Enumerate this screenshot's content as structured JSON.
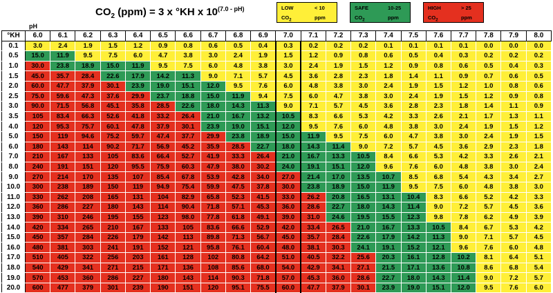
{
  "header": {
    "formula_prefix": "CO",
    "formula_sub": "2",
    "formula_mid": " (ppm) = 3 x °KH x 10",
    "formula_exp": "(7.0 - pH)",
    "legend": [
      {
        "key": "low",
        "label": "LOW",
        "label2": "CO",
        "sub": "2",
        "range": "< 10",
        "unit": "ppm",
        "color": "#ffef38"
      },
      {
        "key": "safe",
        "label": "SAFE",
        "label2": "CO",
        "sub": "2",
        "range": "10-25",
        "unit": "ppm",
        "color": "#2e9a56"
      },
      {
        "key": "high",
        "label": "HIGH",
        "label2": "CO",
        "sub": "2",
        "range": "> 25",
        "unit": "ppm",
        "color": "#e4301f"
      }
    ]
  },
  "chart_data": {
    "type": "table",
    "x_axis_label": "pH",
    "y_axis_label": "°KH",
    "ph_values": [
      "6.0",
      "6.1",
      "6.2",
      "6.3",
      "6.4",
      "6.5",
      "6.6",
      "6.7",
      "6.8",
      "6.9",
      "7.0",
      "7.1",
      "7.2",
      "7.3",
      "7.4",
      "7.5",
      "7.6",
      "7.7",
      "7.8",
      "7.9",
      "8.0"
    ],
    "kh_values": [
      "0.1",
      "0.5",
      "1.0",
      "1.5",
      "2.0",
      "2.5",
      "3.0",
      "3.5",
      "4.0",
      "5.0",
      "6.0",
      "7.0",
      "8.0",
      "9.0",
      "10.0",
      "11.0",
      "12.0",
      "13.0",
      "14.0",
      "15.0",
      "16.0",
      "17.0",
      "18.0",
      "19.0",
      "20.0"
    ],
    "rows": [
      [
        "3.0",
        "2.4",
        "1.9",
        "1.5",
        "1.2",
        "0.9",
        "0.8",
        "0.6",
        "0.5",
        "0.4",
        "0.3",
        "0.2",
        "0.2",
        "0.2",
        "0.1",
        "0.1",
        "0.1",
        "0.1",
        "0.0",
        "0.0",
        "0.0"
      ],
      [
        "15.0",
        "11.9",
        "9.5",
        "7.5",
        "6.0",
        "4.7",
        "3.8",
        "3.0",
        "2.4",
        "1.9",
        "1.5",
        "1.2",
        "0.9",
        "0.8",
        "0.6",
        "0.5",
        "0.4",
        "0.3",
        "0.2",
        "0.2",
        "0.2"
      ],
      [
        "30.0",
        "23.8",
        "18.9",
        "15.0",
        "11.9",
        "9.5",
        "7.5",
        "6.0",
        "4.8",
        "3.8",
        "3.0",
        "2.4",
        "1.9",
        "1.5",
        "1.2",
        "0.9",
        "0.8",
        "0.6",
        "0.5",
        "0.4",
        "0.3"
      ],
      [
        "45.0",
        "35.7",
        "28.4",
        "22.6",
        "17.9",
        "14.2",
        "11.3",
        "9.0",
        "7.1",
        "5.7",
        "4.5",
        "3.6",
        "2.8",
        "2.3",
        "1.8",
        "1.4",
        "1.1",
        "0.9",
        "0.7",
        "0.6",
        "0.5"
      ],
      [
        "60.0",
        "47.7",
        "37.9",
        "30.1",
        "23.9",
        "19.0",
        "15.1",
        "12.0",
        "9.5",
        "7.6",
        "6.0",
        "4.8",
        "3.8",
        "3.0",
        "2.4",
        "1.9",
        "1.5",
        "1.2",
        "1.0",
        "0.8",
        "0.6"
      ],
      [
        "75.0",
        "59.6",
        "47.3",
        "37.6",
        "29.9",
        "23.7",
        "18.8",
        "15.0",
        "11.9",
        "9.4",
        "7.5",
        "6.0",
        "4.7",
        "3.8",
        "3.0",
        "2.4",
        "1.9",
        "1.5",
        "1.2",
        "0.9",
        "0.8"
      ],
      [
        "90.0",
        "71.5",
        "56.8",
        "45.1",
        "35.8",
        "28.5",
        "22.6",
        "18.0",
        "14.3",
        "11.3",
        "9.0",
        "7.1",
        "5.7",
        "4.5",
        "3.6",
        "2.8",
        "2.3",
        "1.8",
        "1.4",
        "1.1",
        "0.9"
      ],
      [
        "105",
        "83.4",
        "66.3",
        "52.6",
        "41.8",
        "33.2",
        "26.4",
        "21.0",
        "16.7",
        "13.2",
        "10.5",
        "8.3",
        "6.6",
        "5.3",
        "4.2",
        "3.3",
        "2.6",
        "2.1",
        "1.7",
        "1.3",
        "1.1"
      ],
      [
        "120",
        "95.3",
        "75.7",
        "60.1",
        "47.8",
        "37.9",
        "30.1",
        "23.9",
        "19.0",
        "15.1",
        "12.0",
        "9.5",
        "7.6",
        "6.0",
        "4.8",
        "3.8",
        "3.0",
        "2.4",
        "1.9",
        "1.5",
        "1.2"
      ],
      [
        "150",
        "119",
        "94.6",
        "75.2",
        "59.7",
        "47.4",
        "37.7",
        "29.9",
        "23.8",
        "18.9",
        "15.0",
        "11.9",
        "9.5",
        "7.5",
        "6.0",
        "4.7",
        "3.8",
        "3.0",
        "2.4",
        "1.9",
        "1.5"
      ],
      [
        "180",
        "143",
        "114",
        "90.2",
        "71.7",
        "56.9",
        "45.2",
        "35.9",
        "28.5",
        "22.7",
        "18.0",
        "14.3",
        "11.4",
        "9.0",
        "7.2",
        "5.7",
        "4.5",
        "3.6",
        "2.9",
        "2.3",
        "1.8"
      ],
      [
        "210",
        "167",
        "133",
        "105",
        "83.6",
        "66.4",
        "52.7",
        "41.9",
        "33.3",
        "26.4",
        "21.0",
        "16.7",
        "13.3",
        "10.5",
        "8.4",
        "6.6",
        "5.3",
        "4.2",
        "3.3",
        "2.6",
        "2.1"
      ],
      [
        "240",
        "191",
        "151",
        "120",
        "95.5",
        "75.9",
        "60.3",
        "47.9",
        "38.0",
        "30.2",
        "24.0",
        "19.1",
        "15.1",
        "12.0",
        "9.6",
        "7.6",
        "6.0",
        "4.8",
        "3.8",
        "3.0",
        "2.4"
      ],
      [
        "270",
        "214",
        "170",
        "135",
        "107",
        "85.4",
        "67.8",
        "53.9",
        "42.8",
        "34.0",
        "27.0",
        "21.4",
        "17.0",
        "13.5",
        "10.7",
        "8.5",
        "6.8",
        "5.4",
        "4.3",
        "3.4",
        "2.7"
      ],
      [
        "300",
        "238",
        "189",
        "150",
        "119",
        "94.9",
        "75.4",
        "59.9",
        "47.5",
        "37.8",
        "30.0",
        "23.8",
        "18.9",
        "15.0",
        "11.9",
        "9.5",
        "7.5",
        "6.0",
        "4.8",
        "3.8",
        "3.0"
      ],
      [
        "330",
        "262",
        "208",
        "165",
        "131",
        "104",
        "82.9",
        "65.8",
        "52.3",
        "41.5",
        "33.0",
        "26.2",
        "20.8",
        "16.5",
        "13.1",
        "10.4",
        "8.3",
        "6.6",
        "5.2",
        "4.2",
        "3.3"
      ],
      [
        "360",
        "286",
        "227",
        "180",
        "143",
        "114",
        "90.4",
        "71.8",
        "57.1",
        "45.3",
        "36.0",
        "28.6",
        "22.7",
        "18.0",
        "14.3",
        "11.4",
        "9.0",
        "7.2",
        "5.7",
        "4.5",
        "3.6"
      ],
      [
        "390",
        "310",
        "246",
        "195",
        "155",
        "123",
        "98.0",
        "77.8",
        "61.8",
        "49.1",
        "39.0",
        "31.0",
        "24.6",
        "19.5",
        "15.5",
        "12.3",
        "9.8",
        "7.8",
        "6.2",
        "4.9",
        "3.9"
      ],
      [
        "420",
        "334",
        "265",
        "210",
        "167",
        "133",
        "105",
        "83.6",
        "66.6",
        "52.9",
        "42.0",
        "33.4",
        "26.5",
        "21.0",
        "16.7",
        "13.3",
        "10.5",
        "8.4",
        "6.7",
        "5.3",
        "4.2"
      ],
      [
        "450",
        "357",
        "284",
        "226",
        "179",
        "142",
        "113",
        "89.8",
        "71.3",
        "56.7",
        "45.0",
        "35.7",
        "28.4",
        "22.6",
        "17.9",
        "14.2",
        "11.3",
        "9.0",
        "7.1",
        "5.7",
        "4.5"
      ],
      [
        "480",
        "381",
        "303",
        "241",
        "191",
        "152",
        "121",
        "95.8",
        "76.1",
        "60.4",
        "48.0",
        "38.1",
        "30.3",
        "24.1",
        "19.1",
        "15.2",
        "12.1",
        "9.6",
        "7.6",
        "6.0",
        "4.8"
      ],
      [
        "510",
        "405",
        "322",
        "256",
        "203",
        "161",
        "128",
        "102",
        "80.8",
        "64.2",
        "51.0",
        "40.5",
        "32.2",
        "25.6",
        "20.3",
        "16.1",
        "12.8",
        "10.2",
        "8.1",
        "6.4",
        "5.1"
      ],
      [
        "540",
        "429",
        "341",
        "271",
        "215",
        "171",
        "136",
        "108",
        "85.6",
        "68.0",
        "54.0",
        "42.9",
        "34.1",
        "27.1",
        "21.5",
        "17.1",
        "13.6",
        "10.8",
        "8.6",
        "6.8",
        "5.4"
      ],
      [
        "570",
        "453",
        "360",
        "286",
        "227",
        "180",
        "143",
        "114",
        "90.3",
        "71.8",
        "57.0",
        "45.3",
        "36.0",
        "28.6",
        "22.7",
        "18.0",
        "14.3",
        "11.4",
        "9.0",
        "7.2",
        "5.7"
      ],
      [
        "600",
        "477",
        "379",
        "301",
        "239",
        "190",
        "151",
        "120",
        "95.1",
        "75.5",
        "60.0",
        "47.7",
        "37.9",
        "30.1",
        "23.9",
        "19.0",
        "15.1",
        "12.0",
        "9.5",
        "7.6",
        "6.0"
      ]
    ]
  }
}
